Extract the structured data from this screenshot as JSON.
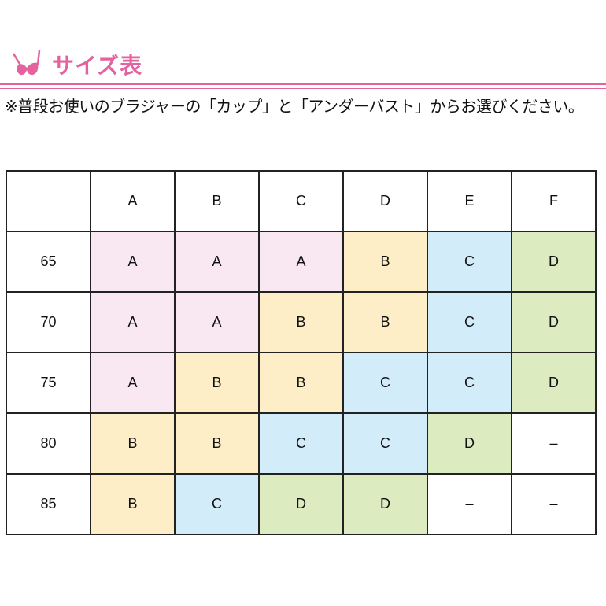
{
  "header": {
    "title": "サイズ表",
    "icon": "bra-icon",
    "accent_color": "#e4629d"
  },
  "note": "※普段お使いのブラジャーの「カップ」と「アンダーバスト」からお選びください。",
  "table": {
    "columns": [
      "",
      "A",
      "B",
      "C",
      "D",
      "E",
      "F"
    ],
    "rows": [
      {
        "label": "65",
        "cells": [
          "A",
          "A",
          "A",
          "B",
          "C",
          "D"
        ]
      },
      {
        "label": "70",
        "cells": [
          "A",
          "A",
          "B",
          "B",
          "C",
          "D"
        ]
      },
      {
        "label": "75",
        "cells": [
          "A",
          "B",
          "B",
          "C",
          "C",
          "D"
        ]
      },
      {
        "label": "80",
        "cells": [
          "B",
          "B",
          "C",
          "C",
          "D",
          "–"
        ]
      },
      {
        "label": "85",
        "cells": [
          "B",
          "C",
          "D",
          "D",
          "–",
          "–"
        ]
      }
    ],
    "cell_colors": {
      "A": "#f9e8f2",
      "B": "#fdeec8",
      "C": "#d2ecfa",
      "D": "#dcebc0",
      "–": "#ffffff"
    }
  }
}
